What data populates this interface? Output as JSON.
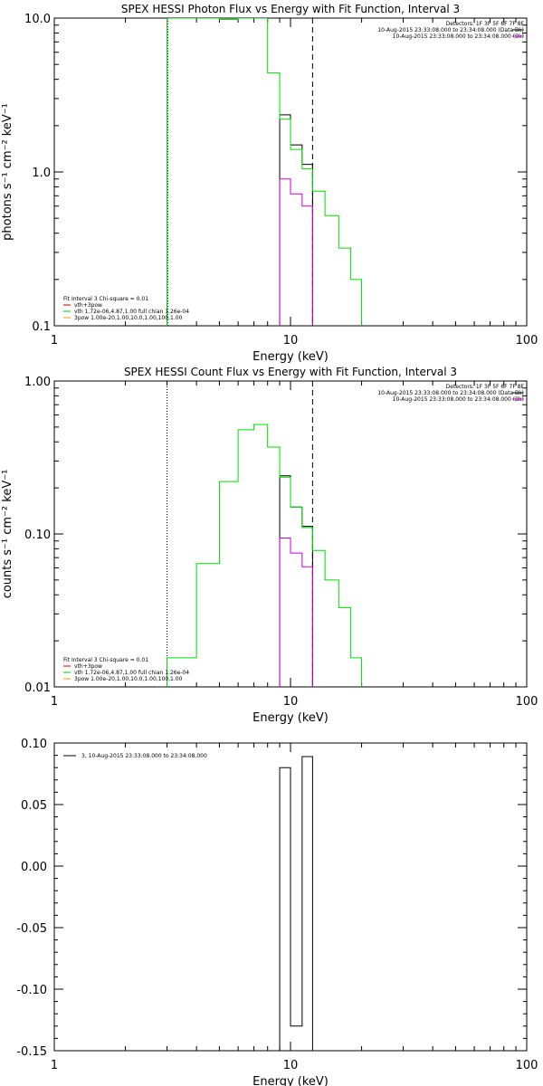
{
  "chart_data": [
    {
      "type": "line",
      "step": true,
      "log_x": true,
      "log_y": true,
      "title": "SPEX HESSI Photon Flux vs Energy with Fit Function, Interval 3",
      "xlabel": "Energy (keV)",
      "ylabel": "photons s⁻¹ cm⁻² keV⁻¹",
      "xlim": [
        1,
        100
      ],
      "ylim": [
        0.1,
        10
      ],
      "x_ticks": [
        "1",
        "10",
        "100"
      ],
      "y_ticks": [
        "0.1",
        "1.0",
        "10.0"
      ],
      "vlines": [
        {
          "x": 3.0,
          "style": "solid",
          "color": "#008000"
        },
        {
          "x": 3.02,
          "style": "dotted",
          "color": "#000000"
        },
        {
          "x": 12.4,
          "style": "dashed",
          "color": "#000000"
        }
      ],
      "header_lines": [
        "Detectors: 1F 3F 5F 6F 7F 8F",
        "10-Aug-2015 23:33:08.000 to 23:34:08.000 (Data-Bk)",
        "10-Aug-2015 23:33:08.000 to 23:34:08.000 (Bk)"
      ],
      "legend_lines": [
        "Fit Interval 3   Chi-square = 0.01",
        "vth+3pow",
        "vth 1.72e-06,4.87,1.00  full chian 1.26e-04",
        "3pow 1.00e-20,1.00,10.0,1.00,100,1.00"
      ],
      "legend_colors": [
        "#000000",
        "#cc0000",
        "#00cc00",
        "#e0a000"
      ],
      "series": [
        {
          "name": "10-Aug-2015 23:33:08.000 to 23:34:08.000 (Data-Bk)",
          "color": "#000000",
          "edges": [
            9.0,
            10.0,
            11.2,
            12.4
          ],
          "values": [
            2.35,
            1.5,
            1.12
          ]
        },
        {
          "name": "10-Aug-2015 23:33:08.000 to 23:34:08.000 (Bk)",
          "color": "#cc00cc",
          "edges": [
            9.0,
            10.0,
            11.2,
            12.4
          ],
          "values": [
            0.9,
            0.72,
            0.6
          ]
        },
        {
          "name": "vth 1.72e-06,4.87,1.00  full chian 1.26e-04",
          "color": "#00dd00",
          "edges": [
            3.0,
            4.0,
            5.0,
            6.0,
            7.0,
            8.0,
            9.0,
            10.0,
            11.2,
            12.4,
            14.0,
            16.0,
            18.0,
            20.0
          ],
          "values": [
            12,
            12,
            9.8,
            10.5,
            10.5,
            4.4,
            2.2,
            1.4,
            1.05,
            0.75,
            0.52,
            0.32,
            0.2
          ]
        }
      ]
    },
    {
      "type": "line",
      "step": true,
      "log_x": true,
      "log_y": true,
      "title": "SPEX HESSI Count Flux vs Energy with Fit Function, Interval 3",
      "xlabel": "Energy (keV)",
      "ylabel": "counts s⁻¹ cm⁻² keV⁻¹",
      "xlim": [
        1,
        100
      ],
      "ylim": [
        0.01,
        1
      ],
      "x_ticks": [
        "1",
        "10",
        "100"
      ],
      "y_ticks": [
        "0.01",
        "0.10",
        "1.00"
      ],
      "vlines": [
        {
          "x": 3.0,
          "style": "dotted",
          "color": "#000000"
        },
        {
          "x": 12.4,
          "style": "dashed",
          "color": "#000000"
        }
      ],
      "header_lines": [
        "Detectors: 1F 3F 5F 6F 7F 8F",
        "10-Aug-2015 23:33:08.000 to 23:34:08.000 (Data-Bk)",
        "10-Aug-2015 23:33:08.000 to 23:34:08.000 (Bk)"
      ],
      "legend_lines": [
        "Fit Interval 3   Chi-square = 0.01",
        "vth+3pow",
        "vth 1.72e-06,4.87,1.00  full chian 1.26e-04",
        "3pow 1.00e-20,1.00,10.0,1.00,100,1.00"
      ],
      "legend_colors": [
        "#000000",
        "#cc0000",
        "#00cc00",
        "#e0a000"
      ],
      "series": [
        {
          "name": "10-Aug-2015 23:33:08.000 to 23:34:08.000 (Data-Bk)",
          "color": "#000000",
          "edges": [
            9.0,
            10.0,
            11.2,
            12.4
          ],
          "values": [
            0.24,
            0.15,
            0.112
          ]
        },
        {
          "name": "10-Aug-2015 23:33:08.000 to 23:34:08.000 (Bk)",
          "color": "#cc00cc",
          "edges": [
            9.0,
            10.0,
            11.2,
            12.4
          ],
          "values": [
            0.094,
            0.075,
            0.061
          ]
        },
        {
          "name": "vth 1.72e-06,4.87,1.00  full chian 1.26e-04",
          "color": "#00dd00",
          "edges": [
            3.0,
            4.0,
            5.0,
            6.0,
            7.0,
            8.0,
            9.0,
            10.0,
            11.2,
            12.4,
            14.0,
            16.0,
            18.0,
            20.0
          ],
          "values": [
            0.0155,
            0.064,
            0.22,
            0.48,
            0.52,
            0.37,
            0.235,
            0.15,
            0.11,
            0.078,
            0.05,
            0.033,
            0.0155
          ]
        }
      ]
    },
    {
      "type": "line",
      "step": true,
      "log_x": true,
      "log_y": false,
      "xlabel": "Energy (keV)",
      "xlim": [
        1,
        100
      ],
      "ylim": [
        -0.15,
        0.1
      ],
      "x_ticks": [
        "1",
        "10",
        "100"
      ],
      "y_ticks": [
        "-0.15",
        "-0.10",
        "-0.05",
        "0.00",
        "0.05",
        "0.10"
      ],
      "legend_lines": [
        "3, 10-Aug-2015 23:33:08.000 to 23:34:08.000"
      ],
      "series": [
        {
          "name": "3, 10-Aug-2015 23:33:08.000 to 23:34:08.000",
          "color": "#000000",
          "edges": [
            9.0,
            10.0,
            11.2,
            12.4
          ],
          "values": [
            0.08,
            -0.13,
            0.089
          ]
        }
      ]
    }
  ]
}
